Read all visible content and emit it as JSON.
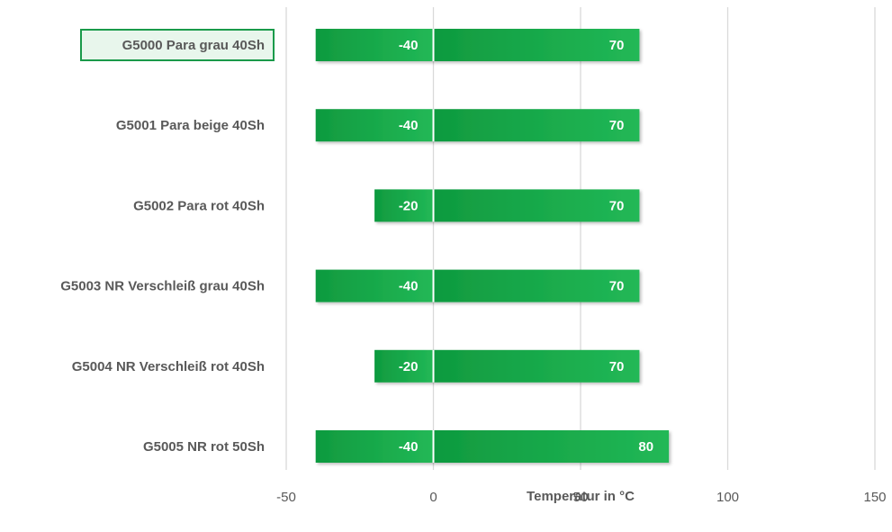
{
  "chart_data": {
    "type": "bar",
    "orientation": "horizontal",
    "categories": [
      "G5000 Para grau 40Sh",
      "G5001 Para beige 40Sh",
      "G5002 Para rot 40Sh",
      "G5003 NR Verschleiß grau 40Sh",
      "G5004 NR Verschleiß rot 40Sh",
      "G5005 NR rot 50Sh"
    ],
    "series": [
      {
        "values": [
          -40,
          -40,
          -20,
          -40,
          -20,
          -40
        ]
      },
      {
        "values": [
          70,
          70,
          70,
          70,
          70,
          80
        ]
      }
    ],
    "xlabel": "Temperatur in °C",
    "ylabel": "",
    "xlim": [
      -50,
      150
    ],
    "xticks": [
      -50,
      0,
      50,
      100,
      150
    ],
    "xtick_labels": [
      "-50",
      "0",
      "50",
      "100",
      "150"
    ],
    "grid": true,
    "legend": "none",
    "highlighted_category": "G5000 Para grau 40Sh",
    "colors": {
      "bar": "#1aa84a",
      "bar_dark": "#0f9a3f",
      "bar_light": "#22b856",
      "text": "#595959",
      "grid": "#d9d9d9",
      "highlight_border": "#1a9a4a",
      "highlight_fill": "#e8f6ec"
    }
  }
}
